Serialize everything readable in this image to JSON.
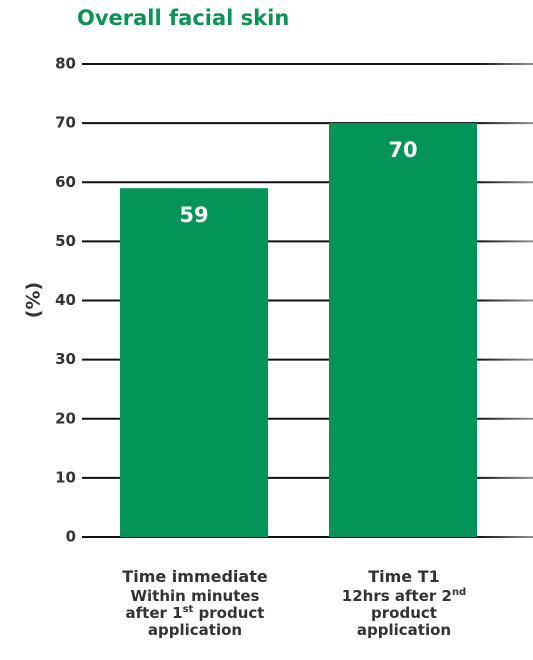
{
  "chart_data": {
    "type": "bar",
    "title": "Overall facial skin",
    "ylabel": "(%)",
    "ylim": [
      0,
      80
    ],
    "yticks": [
      0,
      10,
      20,
      30,
      40,
      50,
      60,
      70,
      80
    ],
    "categories": [
      "Time immediate",
      "Time T1"
    ],
    "category_details": [
      {
        "line1": "Within minutes",
        "line2_pre": "after 1",
        "line2_sup": "st",
        "line2_post": " product",
        "line3": "application"
      },
      {
        "line1": "12hrs after 2",
        "line1_sup": "nd",
        "line2": "product",
        "line3": "application"
      }
    ],
    "values": [
      59,
      70
    ],
    "data_labels": [
      "59",
      "70"
    ],
    "bar_color": "#049359",
    "title_color": "#0b9255",
    "grid": true
  }
}
